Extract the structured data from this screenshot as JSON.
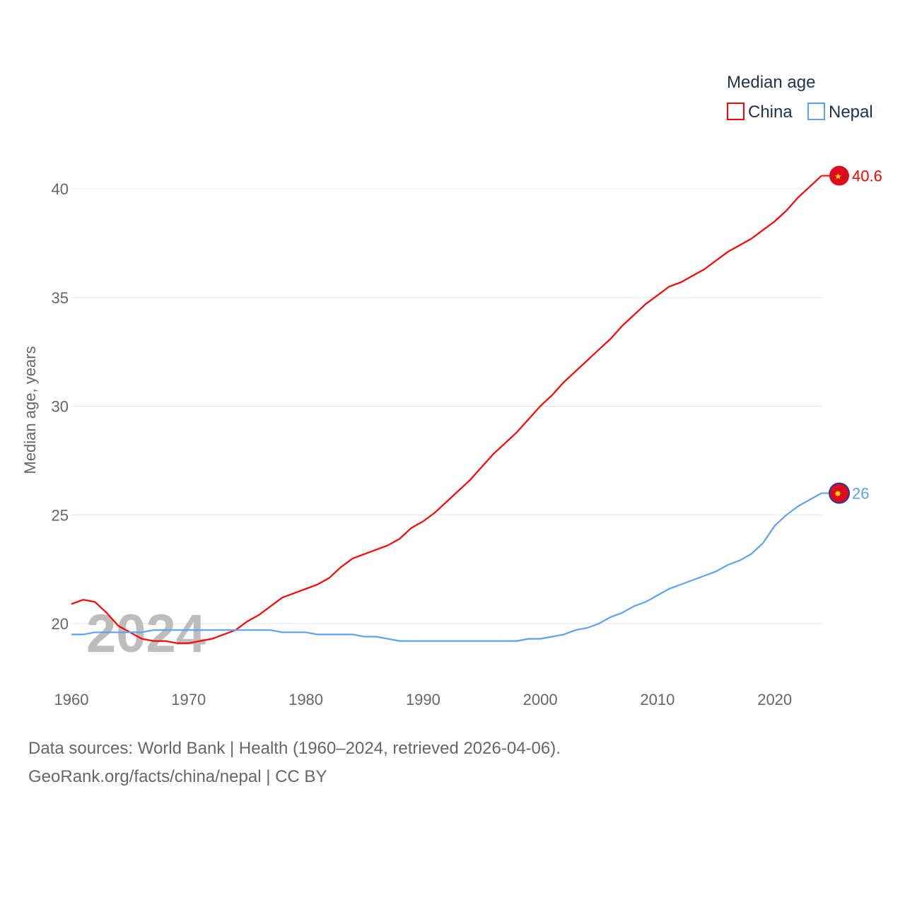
{
  "chart_data": {
    "type": "line",
    "title": "Median age",
    "xlabel": "",
    "ylabel": "Median age, years",
    "xlim": [
      1960,
      2024
    ],
    "ylim": [
      18,
      42
    ],
    "xticks": [
      1960,
      1970,
      1980,
      1990,
      2000,
      2010,
      2020
    ],
    "yticks": [
      20,
      25,
      30,
      35,
      40
    ],
    "grid": true,
    "legend_position": "top-right",
    "watermark": "2024",
    "x": [
      1960,
      1961,
      1962,
      1963,
      1964,
      1965,
      1966,
      1967,
      1968,
      1969,
      1970,
      1971,
      1972,
      1973,
      1974,
      1975,
      1976,
      1977,
      1978,
      1979,
      1980,
      1981,
      1982,
      1983,
      1984,
      1985,
      1986,
      1987,
      1988,
      1989,
      1990,
      1991,
      1992,
      1993,
      1994,
      1995,
      1996,
      1997,
      1998,
      1999,
      2000,
      2001,
      2002,
      2003,
      2004,
      2005,
      2006,
      2007,
      2008,
      2009,
      2010,
      2011,
      2012,
      2013,
      2014,
      2015,
      2016,
      2017,
      2018,
      2019,
      2020,
      2021,
      2022,
      2023,
      2024
    ],
    "series": [
      {
        "name": "China",
        "color": "#ff0000",
        "end_label": "40.6",
        "values": [
          20.9,
          21.1,
          21.0,
          20.5,
          19.9,
          19.6,
          19.3,
          19.2,
          19.2,
          19.1,
          19.1,
          19.2,
          19.3,
          19.5,
          19.7,
          20.1,
          20.4,
          20.8,
          21.2,
          21.4,
          21.6,
          21.8,
          22.1,
          22.6,
          23.0,
          23.2,
          23.4,
          23.6,
          23.9,
          24.4,
          24.7,
          25.1,
          25.6,
          26.1,
          26.6,
          27.2,
          27.8,
          28.3,
          28.8,
          29.4,
          30.0,
          30.5,
          31.1,
          31.6,
          32.1,
          32.6,
          33.1,
          33.7,
          34.2,
          34.7,
          35.1,
          35.5,
          35.7,
          36.0,
          36.3,
          36.7,
          37.1,
          37.4,
          37.7,
          38.1,
          38.5,
          39.0,
          39.6,
          40.1,
          40.6
        ]
      },
      {
        "name": "Nepal",
        "color": "#5aa3f0",
        "end_label": "26",
        "values": [
          19.5,
          19.5,
          19.6,
          19.6,
          19.6,
          19.6,
          19.6,
          19.7,
          19.7,
          19.7,
          19.7,
          19.7,
          19.7,
          19.7,
          19.7,
          19.7,
          19.7,
          19.7,
          19.6,
          19.6,
          19.6,
          19.5,
          19.5,
          19.5,
          19.5,
          19.4,
          19.4,
          19.3,
          19.2,
          19.2,
          19.2,
          19.2,
          19.2,
          19.2,
          19.2,
          19.2,
          19.2,
          19.2,
          19.2,
          19.3,
          19.3,
          19.4,
          19.5,
          19.7,
          19.8,
          20.0,
          20.3,
          20.5,
          20.8,
          21.0,
          21.3,
          21.6,
          21.8,
          22.0,
          22.2,
          22.4,
          22.7,
          22.9,
          23.2,
          23.7,
          24.5,
          25.0,
          25.4,
          25.7,
          26.0
        ]
      }
    ]
  },
  "footer": {
    "line1": "Data sources: World Bank | Health (1960–2024, retrieved 2026-04-06).",
    "line2": "GeoRank.org/facts/china/nepal | CC BY"
  }
}
